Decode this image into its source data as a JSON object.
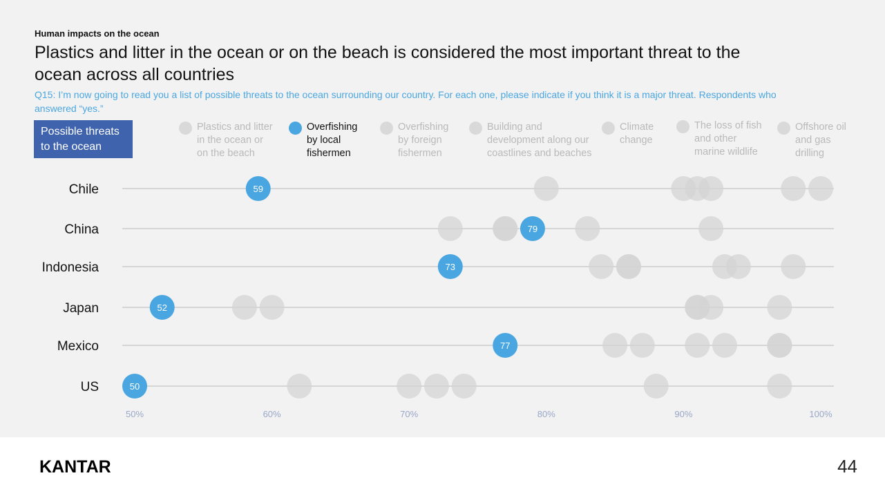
{
  "header": {
    "kicker": "Human impacts on the ocean",
    "title": "Plastics and litter in the ocean or on the beach is considered the most important threat to the ocean across all countries",
    "subtitle": "Q15: I’m now going to read you a list of possible threats to the ocean surrounding our country. For each one, please indicate if you think it is a major threat. Respondents who answered “yes.”"
  },
  "legend": {
    "box_label": "Possible threats to the ocean",
    "items": [
      {
        "label": "Plastics and litter\nin the ocean or\non the beach",
        "active": false
      },
      {
        "label": "Overfishing\nby local\nfishermen",
        "active": true
      },
      {
        "label": "Overfishing\nby foreign\nfishermen",
        "active": false
      },
      {
        "label": "Building and\ndevelopment along our\ncoastlines and beaches",
        "active": false
      },
      {
        "label": "Climate\nchange",
        "active": false
      },
      {
        "label": "The loss of fish\nand other\nmarine wildlife",
        "active": false
      },
      {
        "label": "Offshore oil\nand gas\ndrilling",
        "active": false
      }
    ]
  },
  "chart_data": {
    "type": "scatter",
    "title": "",
    "xlabel": "",
    "ylabel": "",
    "xlim": [
      49,
      101
    ],
    "x_ticks": [
      "50%",
      "60%",
      "70%",
      "80%",
      "90%",
      "100%"
    ],
    "x_tick_values": [
      50,
      60,
      70,
      80,
      90,
      100
    ],
    "categories": [
      "Chile",
      "China",
      "Indonesia",
      "Japan",
      "Mexico",
      "US"
    ],
    "highlighted_series": "Overfishing by local fishermen",
    "highlighted_values": [
      59,
      79,
      73,
      52,
      77,
      50
    ],
    "other_values": [
      [
        80,
        90,
        91,
        92,
        98,
        100
      ],
      [
        73,
        77,
        77,
        79,
        83,
        92
      ],
      [
        84,
        86,
        86,
        93,
        94,
        98
      ],
      [
        58,
        60,
        91,
        91,
        92,
        97
      ],
      [
        85,
        87,
        91,
        93,
        97,
        97
      ],
      [
        62,
        70,
        72,
        74,
        88,
        97
      ]
    ],
    "grid": false,
    "colors": {
      "highlight": "#4aa6e0",
      "other": "#d4d4d4",
      "line": "#b8b8b8",
      "tick": "#9aa7c8"
    }
  },
  "footer": {
    "logo": "KANTAR",
    "page_number": "44"
  }
}
